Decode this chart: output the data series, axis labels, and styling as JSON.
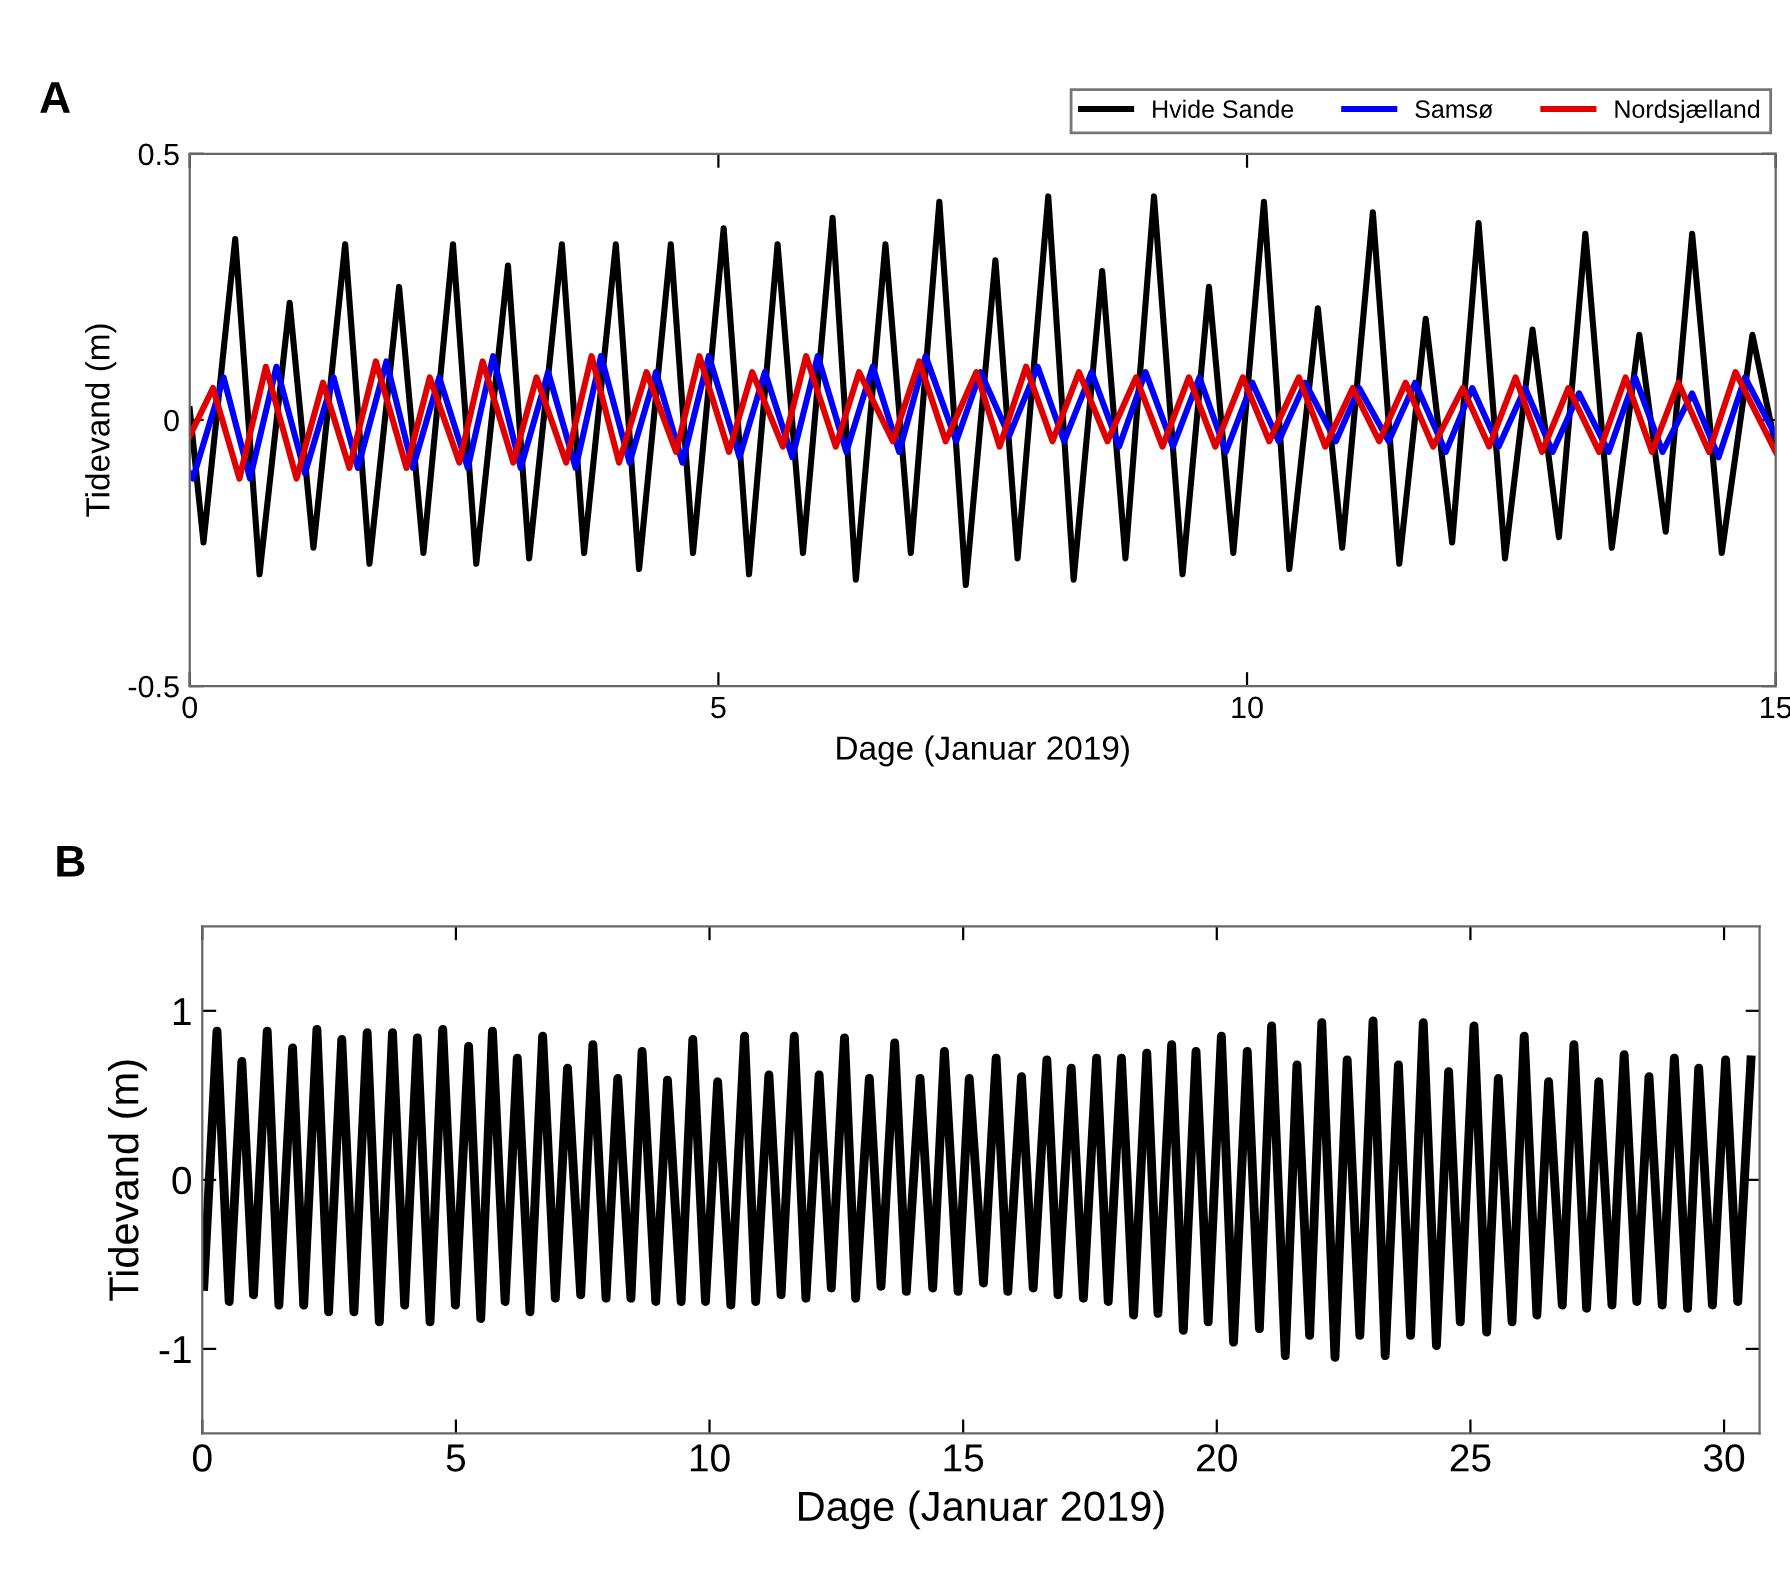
{
  "chart_data": [
    {
      "type": "line",
      "title": "A",
      "xlabel": "Dage (Januar 2019)",
      "ylabel": "Tidevand (m)",
      "xlim": [
        0,
        15
      ],
      "ylim": [
        -0.5,
        0.5
      ],
      "xticks": [
        0,
        5,
        10,
        15
      ],
      "yticks": [
        {
          "value": -0.5,
          "label": "-0.5"
        },
        0,
        0.5
      ],
      "grid": false,
      "legend": "top right",
      "marker": "none",
      "line_style": "solid",
      "series": [
        {
          "name": "Hvide Sande",
          "color": "#000000",
          "x": [
            0,
            0.13,
            0.43,
            0.66,
            0.945,
            1.17,
            1.47,
            1.7,
            1.98,
            2.21,
            2.49,
            2.71,
            3.01,
            3.21,
            3.52,
            3.73,
            4.03,
            4.25,
            4.55,
            4.76,
            5.05,
            5.29,
            5.56,
            5.8,
            6.08,
            6.3,
            6.58,
            6.82,
            7.09,
            7.34,
            7.62,
            7.83,
            8.12,
            8.36,
            8.63,
            8.85,
            9.12,
            9.39,
            9.64,
            9.87,
            10.16,
            10.4,
            10.67,
            10.9,
            11.19,
            11.44,
            11.69,
            11.94,
            12.19,
            12.44,
            12.7,
            12.95,
            13.2,
            13.45,
            13.71,
            13.96,
            14.21,
            14.49,
            14.78,
            15
          ],
          "values": [
            0.02,
            -0.23,
            0.34,
            -0.29,
            0.22,
            -0.24,
            0.33,
            -0.27,
            0.25,
            -0.25,
            0.33,
            -0.27,
            0.29,
            -0.26,
            0.33,
            -0.25,
            0.33,
            -0.28,
            0.33,
            -0.25,
            0.36,
            -0.29,
            0.33,
            -0.25,
            0.38,
            -0.3,
            0.33,
            -0.25,
            0.41,
            -0.31,
            0.3,
            -0.26,
            0.42,
            -0.3,
            0.28,
            -0.26,
            0.42,
            -0.29,
            0.25,
            -0.25,
            0.41,
            -0.28,
            0.21,
            -0.24,
            0.39,
            -0.27,
            0.19,
            -0.23,
            0.37,
            -0.26,
            0.17,
            -0.22,
            0.35,
            -0.24,
            0.16,
            -0.21,
            0.35,
            -0.25,
            0.16,
            -0.05
          ]
        },
        {
          "name": "Samsø",
          "color": "#0000ff",
          "x": [
            0,
            0.03,
            0.32,
            0.57,
            0.82,
            1.09,
            1.36,
            1.59,
            1.86,
            2.11,
            2.36,
            2.63,
            2.87,
            3.13,
            3.39,
            3.65,
            3.89,
            4.16,
            4.41,
            4.66,
            4.91,
            5.2,
            5.44,
            5.7,
            5.94,
            6.21,
            6.46,
            6.71,
            6.96,
            7.25,
            7.48,
            7.75,
            8.02,
            8.27,
            8.53,
            8.79,
            9.04,
            9.3,
            9.55,
            9.8,
            10.05,
            10.3,
            10.55,
            10.84,
            11.06,
            11.34,
            11.59,
            11.88,
            12.13,
            12.38,
            12.63,
            12.89,
            13.14,
            13.42,
            13.67,
            13.93,
            14.21,
            14.46,
            14.71,
            15
          ],
          "values": [
            -0.1,
            -0.11,
            0.08,
            -0.11,
            0.1,
            -0.1,
            0.08,
            -0.09,
            0.11,
            -0.09,
            0.08,
            -0.09,
            0.12,
            -0.09,
            0.09,
            -0.09,
            0.12,
            -0.08,
            0.09,
            -0.08,
            0.12,
            -0.07,
            0.09,
            -0.07,
            0.12,
            -0.06,
            0.1,
            -0.06,
            0.12,
            -0.04,
            0.09,
            -0.03,
            0.1,
            -0.04,
            0.09,
            -0.05,
            0.09,
            -0.05,
            0.08,
            -0.06,
            0.07,
            -0.04,
            0.07,
            -0.04,
            0.06,
            -0.04,
            0.07,
            -0.06,
            0.06,
            -0.05,
            0.06,
            -0.06,
            0.05,
            -0.06,
            0.08,
            -0.06,
            0.05,
            -0.07,
            0.08,
            -0.03
          ]
        },
        {
          "name": "Nordsjælland",
          "color": "#e00000",
          "x": [
            0,
            0.22,
            0.47,
            0.72,
            1.01,
            1.26,
            1.51,
            1.76,
            2.05,
            2.27,
            2.55,
            2.77,
            3.06,
            3.28,
            3.56,
            3.8,
            4.06,
            4.32,
            4.6,
            4.82,
            5.1,
            5.32,
            5.61,
            5.83,
            6.11,
            6.33,
            6.65,
            6.9,
            7.15,
            7.44,
            7.66,
            7.91,
            8.16,
            8.41,
            8.68,
            8.95,
            9.2,
            9.45,
            9.7,
            9.96,
            10.21,
            10.49,
            10.74,
            11.0,
            11.25,
            11.5,
            11.76,
            12.04,
            12.29,
            12.54,
            12.79,
            13.04,
            13.33,
            13.58,
            13.83,
            14.08,
            14.37,
            14.62,
            15
          ],
          "values": [
            -0.03,
            0.06,
            -0.11,
            0.1,
            -0.11,
            0.07,
            -0.09,
            0.11,
            -0.09,
            0.08,
            -0.08,
            0.11,
            -0.08,
            0.08,
            -0.08,
            0.12,
            -0.08,
            0.09,
            -0.06,
            0.12,
            -0.06,
            0.09,
            -0.05,
            0.12,
            -0.05,
            0.09,
            -0.04,
            0.11,
            -0.04,
            0.09,
            -0.05,
            0.1,
            -0.04,
            0.09,
            -0.04,
            0.08,
            -0.05,
            0.08,
            -0.05,
            0.08,
            -0.04,
            0.08,
            -0.05,
            0.06,
            -0.04,
            0.07,
            -0.05,
            0.06,
            -0.05,
            0.08,
            -0.06,
            0.06,
            -0.06,
            0.08,
            -0.06,
            0.07,
            -0.06,
            0.09,
            -0.06
          ]
        }
      ]
    },
    {
      "type": "line",
      "title": "B",
      "xlabel": "Dage (Januar 2019)",
      "ylabel": "Tidevand (m)",
      "xlim": [
        0,
        30.7
      ],
      "ylim": [
        -1.5,
        1.5
      ],
      "xticks": [
        0,
        5,
        10,
        15,
        20,
        25,
        30
      ],
      "yticks": [
        {
          "value": -1,
          "label": "-1"
        },
        0,
        1
      ],
      "grid": false,
      "legend": false,
      "marker": "none",
      "line_style": "solid",
      "series": [
        {
          "color": "#000000",
          "x": [
            0.03,
            0.29,
            0.53,
            0.78,
            1.01,
            1.28,
            1.51,
            1.78,
            2.0,
            2.26,
            2.49,
            2.75,
            2.99,
            3.25,
            3.49,
            3.75,
            3.99,
            4.24,
            4.49,
            4.74,
            4.99,
            5.25,
            5.49,
            5.72,
            5.97,
            6.21,
            6.46,
            6.71,
            6.96,
            7.2,
            7.46,
            7.7,
            7.96,
            8.19,
            8.45,
            8.67,
            8.94,
            9.17,
            9.44,
            9.67,
            9.92,
            10.16,
            10.42,
            10.69,
            10.91,
            11.17,
            11.41,
            11.67,
            11.9,
            12.16,
            12.4,
            12.66,
            12.88,
            13.15,
            13.38,
            13.65,
            13.88,
            14.15,
            14.4,
            14.63,
            14.9,
            15.12,
            15.4,
            15.65,
            15.88,
            16.15,
            16.38,
            16.65,
            16.87,
            17.13,
            17.37,
            17.63,
            17.86,
            18.12,
            18.36,
            18.62,
            18.84,
            19.11,
            19.34,
            19.59,
            19.83,
            20.09,
            20.33,
            20.6,
            20.84,
            21.08,
            21.35,
            21.58,
            21.83,
            22.07,
            22.33,
            22.57,
            22.82,
            23.08,
            23.32,
            23.58,
            23.82,
            24.07,
            24.33,
            24.57,
            24.8,
            25.07,
            25.32,
            25.55,
            25.82,
            26.06,
            26.31,
            26.54,
            26.81,
            27.04,
            27.29,
            27.53,
            27.79,
            28.03,
            28.28,
            28.52,
            28.78,
            29.02,
            29.28,
            29.5,
            29.77,
            30.03,
            30.27,
            30.53
          ],
          "values": [
            -0.63,
            0.88,
            -0.72,
            0.7,
            -0.68,
            0.88,
            -0.74,
            0.78,
            -0.74,
            0.89,
            -0.78,
            0.83,
            -0.78,
            0.87,
            -0.84,
            0.87,
            -0.74,
            0.84,
            -0.84,
            0.89,
            -0.74,
            0.79,
            -0.82,
            0.88,
            -0.72,
            0.72,
            -0.78,
            0.85,
            -0.7,
            0.66,
            -0.68,
            0.8,
            -0.7,
            0.6,
            -0.7,
            0.76,
            -0.72,
            0.59,
            -0.72,
            0.83,
            -0.72,
            0.58,
            -0.74,
            0.85,
            -0.72,
            0.62,
            -0.68,
            0.85,
            -0.7,
            0.62,
            -0.64,
            0.84,
            -0.7,
            0.6,
            -0.63,
            0.81,
            -0.66,
            0.6,
            -0.64,
            0.76,
            -0.66,
            0.6,
            -0.61,
            0.72,
            -0.66,
            0.61,
            -0.64,
            0.71,
            -0.68,
            0.66,
            -0.7,
            0.72,
            -0.72,
            0.72,
            -0.8,
            0.75,
            -0.79,
            0.8,
            -0.89,
            0.76,
            -0.84,
            0.85,
            -0.96,
            0.76,
            -0.88,
            0.91,
            -1.04,
            0.68,
            -0.92,
            0.93,
            -1.05,
            0.71,
            -0.92,
            0.94,
            -1.04,
            0.68,
            -0.92,
            0.93,
            -0.98,
            0.64,
            -0.84,
            0.91,
            -0.9,
            0.6,
            -0.84,
            0.85,
            -0.8,
            0.58,
            -0.74,
            0.8,
            -0.76,
            0.58,
            -0.74,
            0.74,
            -0.72,
            0.61,
            -0.74,
            0.72,
            -0.76,
            0.66,
            -0.74,
            0.71,
            -0.72,
            0.71
          ]
        }
      ]
    }
  ]
}
